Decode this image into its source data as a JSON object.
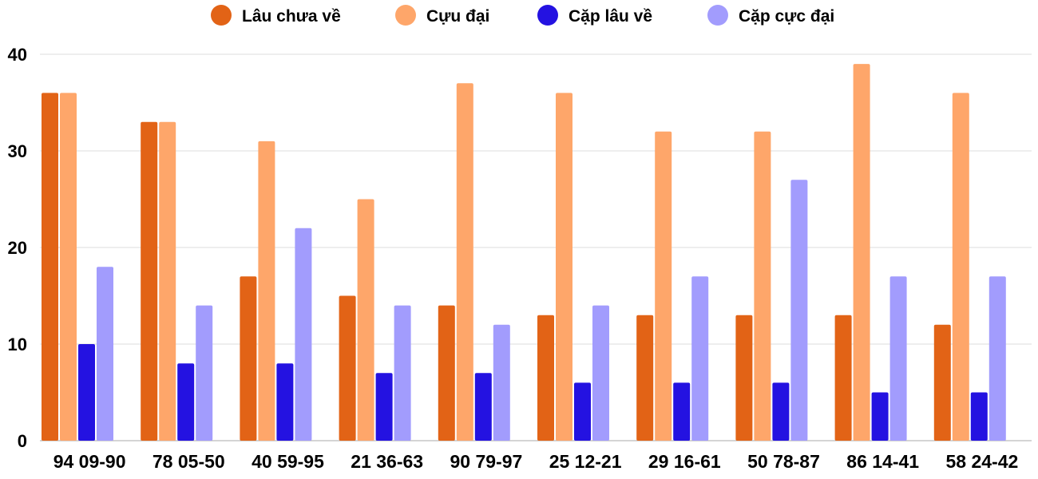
{
  "chart_data": {
    "type": "bar",
    "title": "",
    "xlabel": "",
    "ylabel": "",
    "ylim": [
      0,
      40
    ],
    "yticks": [
      0,
      10,
      20,
      30,
      40
    ],
    "grid": true,
    "legend_position": "top-center",
    "categories": [
      "94 09-90",
      "78 05-50",
      "40 59-95",
      "21 36-63",
      "90 79-97",
      "25 12-21",
      "29 16-61",
      "50 78-87",
      "86 14-41",
      "58 24-42"
    ],
    "series": [
      {
        "name": "Lâu chưa về",
        "color": "#e26316",
        "values": [
          36,
          33,
          17,
          15,
          14,
          13,
          13,
          13,
          13,
          12
        ]
      },
      {
        "name": "Cựu đại",
        "color": "#fea66a",
        "values": [
          36,
          33,
          31,
          25,
          37,
          36,
          32,
          32,
          39,
          36
        ]
      },
      {
        "name": "Cặp lâu về",
        "color": "#2412e1",
        "values": [
          10,
          8,
          8,
          7,
          7,
          6,
          6,
          6,
          5,
          5
        ]
      },
      {
        "name": "Cặp cực đại",
        "color": "#a29cfd",
        "values": [
          18,
          14,
          22,
          14,
          12,
          14,
          17,
          27,
          17,
          17
        ]
      }
    ]
  }
}
